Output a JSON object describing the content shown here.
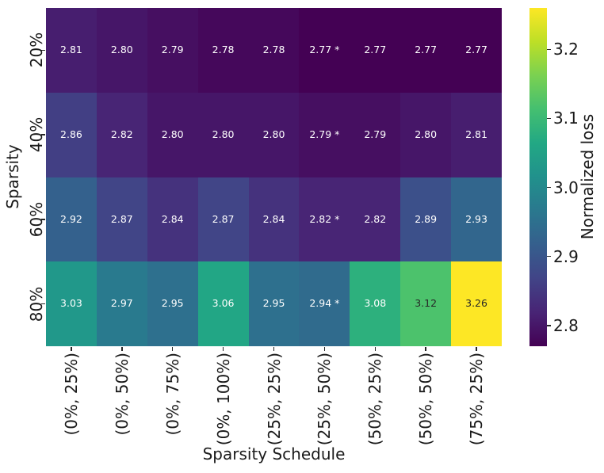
{
  "chart_data": {
    "type": "heatmap",
    "title": "",
    "xlabel": "Sparsity Schedule",
    "ylabel": "Sparsity",
    "colorbar_label": "Normalized loss",
    "x_categories": [
      "(0%, 25%)",
      "(0%, 50%)",
      "(0%, 75%)",
      "(0%, 100%)",
      "(25%, 25%)",
      "(25%, 50%)",
      "(50%, 25%)",
      "(50%, 50%)",
      "(75%, 25%)"
    ],
    "y_categories": [
      "20%",
      "40%",
      "60%",
      "80%"
    ],
    "values": [
      [
        2.81,
        2.8,
        2.79,
        2.78,
        2.78,
        2.77,
        2.77,
        2.77,
        2.77
      ],
      [
        2.86,
        2.82,
        2.8,
        2.8,
        2.8,
        2.79,
        2.79,
        2.8,
        2.81
      ],
      [
        2.92,
        2.87,
        2.84,
        2.87,
        2.84,
        2.82,
        2.82,
        2.89,
        2.93
      ],
      [
        3.03,
        2.97,
        2.95,
        3.06,
        2.95,
        2.94,
        3.08,
        3.12,
        3.26
      ]
    ],
    "cell_labels": [
      [
        "2.81",
        "2.80",
        "2.79",
        "2.78",
        "2.78",
        "2.77 *",
        "2.77",
        "2.77",
        "2.77"
      ],
      [
        "2.86",
        "2.82",
        "2.80",
        "2.80",
        "2.80",
        "2.79 *",
        "2.79",
        "2.80",
        "2.81"
      ],
      [
        "2.92",
        "2.87",
        "2.84",
        "2.87",
        "2.84",
        "2.82 *",
        "2.82",
        "2.89",
        "2.93"
      ],
      [
        "3.03",
        "2.97",
        "2.95",
        "3.06",
        "2.95",
        "2.94 *",
        "3.08",
        "3.12",
        "3.26"
      ]
    ],
    "colormap": "viridis",
    "vmin": 2.77,
    "vmax": 3.26,
    "colorbar_ticks": [
      2.8,
      2.9,
      3.0,
      3.1,
      3.2
    ],
    "colorbar_position": "right",
    "grid": false
  },
  "style": {
    "viridis_stops": [
      "#440154",
      "#482475",
      "#414487",
      "#355f8d",
      "#2a788e",
      "#21918c",
      "#22a884",
      "#44bf70",
      "#7ad151",
      "#bddf26",
      "#fde725"
    ],
    "background": "#ffffff",
    "text_color": "#1a1a1a",
    "tick_color": "#262626",
    "annotation_light": "#ffffff",
    "annotation_dark": "#262626"
  }
}
